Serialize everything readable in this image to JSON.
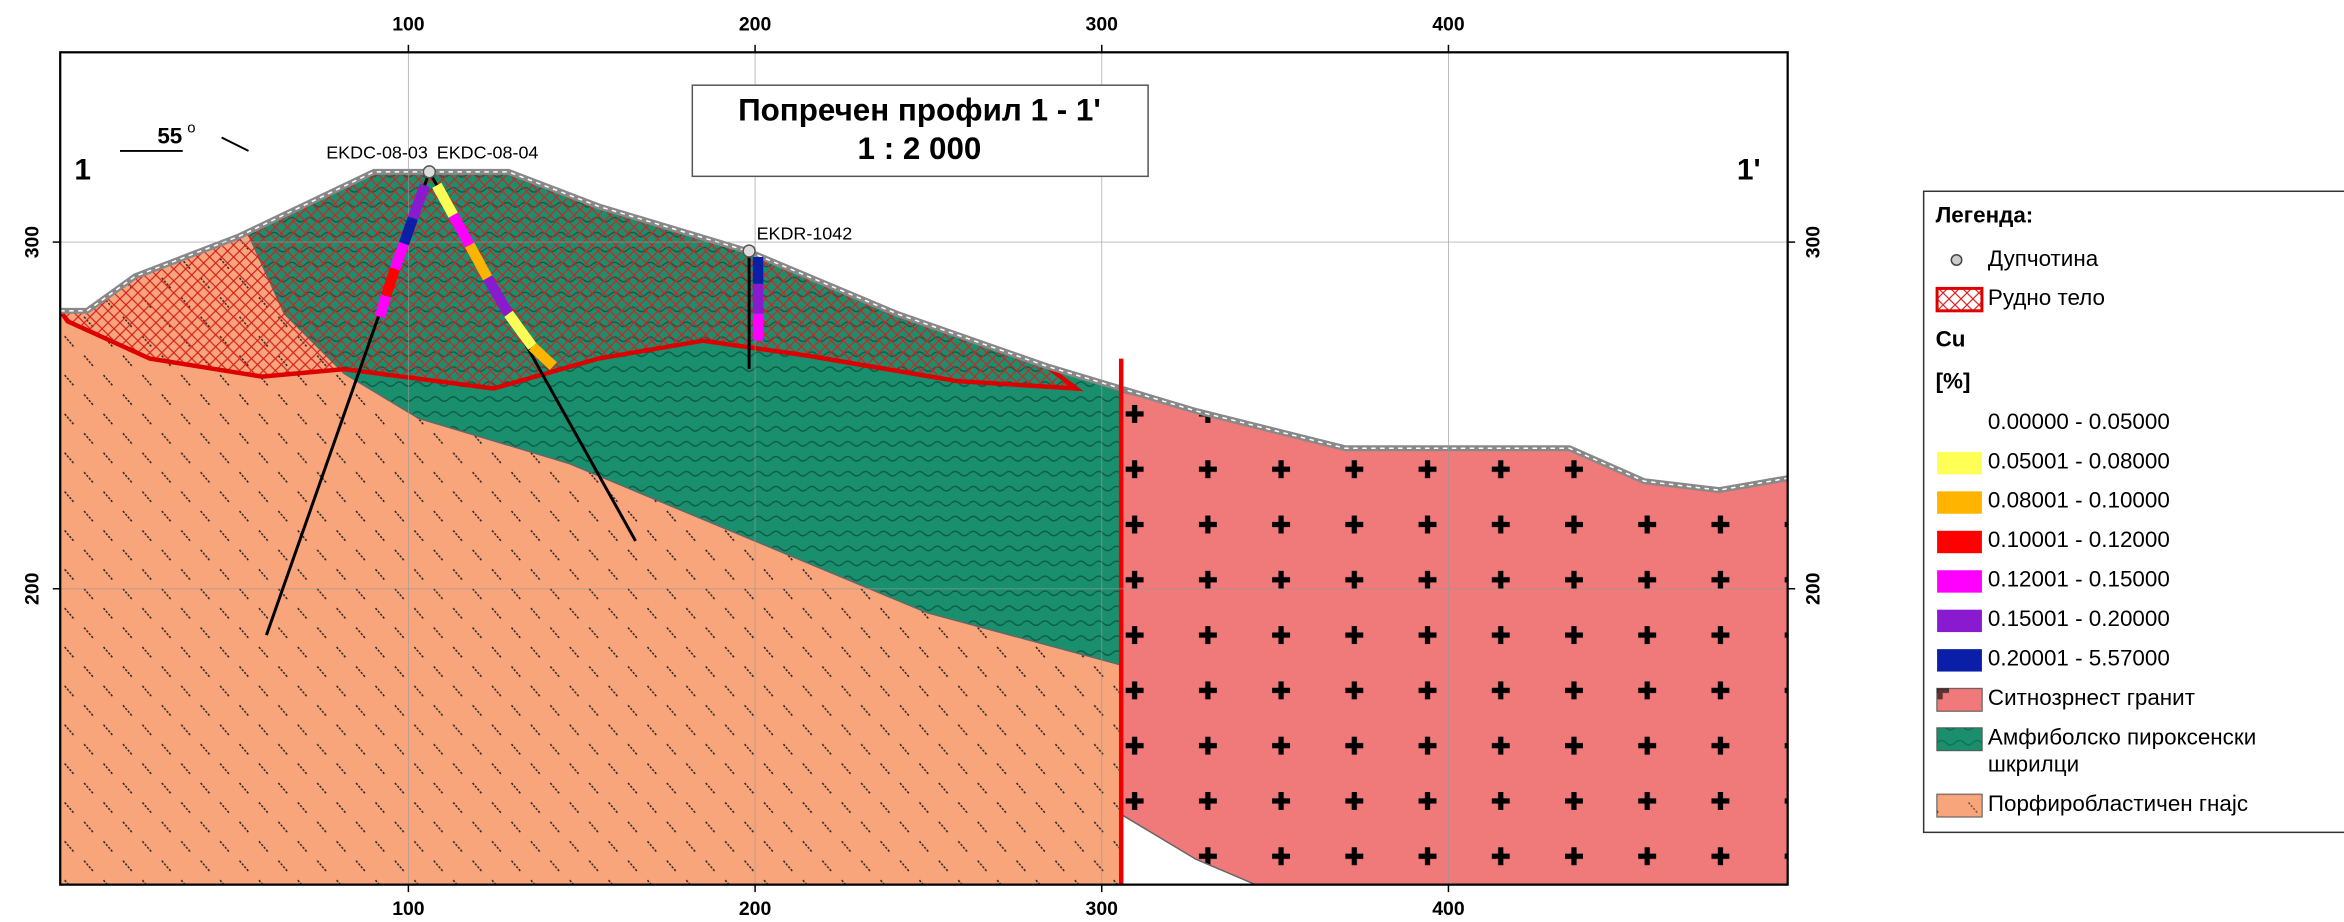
{
  "title": "Попречен профил 1 - 1'",
  "scale": "1 : 2 000",
  "section_start": "1",
  "section_end": "1'",
  "dip": "55",
  "dip_unit": "o",
  "drillholes": [
    "EKDC-08-03",
    "EKDC-08-04",
    "EKDR-1042"
  ],
  "axes": {
    "x_ticks": [
      100,
      200,
      300,
      400
    ],
    "y_ticks": [
      300,
      200
    ]
  },
  "legend": {
    "title": "Легенда:",
    "symbols": [
      {
        "label": "Дупчотина"
      },
      {
        "label": "Рудно тело"
      }
    ],
    "cu_title": "Cu",
    "cu_unit": "[%]",
    "cu_classes": [
      {
        "label": "0.00000 - 0.05000",
        "color": "#ffffff"
      },
      {
        "label": "0.05001 - 0.08000",
        "color": "#ffff55"
      },
      {
        "label": "0.08001 - 0.10000",
        "color": "#ffb400"
      },
      {
        "label": "0.10001 - 0.12000",
        "color": "#ff0000"
      },
      {
        "label": "0.12001 - 0.15000",
        "color": "#ff00ff"
      },
      {
        "label": "0.15001 - 0.20000",
        "color": "#8a1ad0"
      },
      {
        "label": "0.20001 - 5.57000",
        "color": "#0a1ea8"
      }
    ],
    "lithology": [
      {
        "lines": [
          "Ситнозрнест гранит"
        ],
        "color": "#f07a7a"
      },
      {
        "lines": [
          "Амфиболско пироксенски",
          "шкрилци"
        ],
        "color": "#1a8f6e"
      },
      {
        "lines": [
          "Порфиробластичен гнајс"
        ],
        "color": "#f9a57c"
      }
    ]
  }
}
